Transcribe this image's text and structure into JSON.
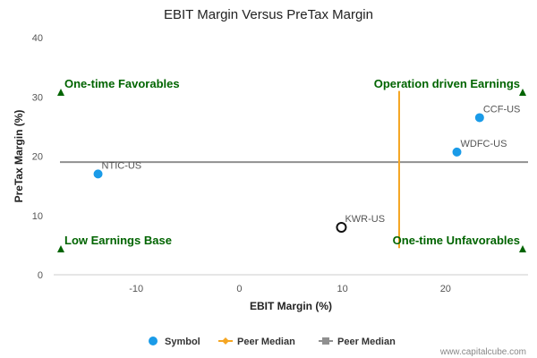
{
  "chart_data": {
    "type": "scatter",
    "title": "EBIT Margin Versus PreTax Margin",
    "xlabel": "EBIT Margin (%)",
    "ylabel": "PreTax Margin (%)",
    "xlim": [
      -18,
      28
    ],
    "ylim": [
      0,
      40
    ],
    "xticks": [
      -10,
      0,
      10,
      20
    ],
    "yticks": [
      0,
      10,
      20,
      30,
      40
    ],
    "grid": false,
    "legend_position": "bottom",
    "points": [
      {
        "label": "NTIC-US",
        "x": -13.7,
        "y": 17,
        "style": "filled"
      },
      {
        "label": "CCF-US",
        "x": 23.3,
        "y": 26.5,
        "style": "filled"
      },
      {
        "label": "WDFC-US",
        "x": 21.1,
        "y": 20.7,
        "style": "filled"
      },
      {
        "label": "KWR-US",
        "x": 9.9,
        "y": 8,
        "style": "open"
      }
    ],
    "peer_median_x": 15.5,
    "peer_median_y": 19,
    "peer_median_x_range": [
      4.5,
      31
    ],
    "quadrants": {
      "top_left": "One-time Favorables",
      "top_right": "Operation driven Earnings",
      "bottom_left": "Low Earnings Base",
      "bottom_right": "One-time Unfavorables"
    },
    "legend": [
      {
        "label": "Symbol",
        "marker": "circle"
      },
      {
        "label": "Peer Median",
        "marker": "diamond-line"
      },
      {
        "label": "Peer Median",
        "marker": "square-line"
      }
    ],
    "colors": {
      "point": "#1a9be8",
      "kwr_point_stroke": "#111111",
      "peer_median_x": "#f5a623",
      "peer_median_y": "#909090",
      "quadrant_text": "#006400",
      "triangle": "#006400"
    }
  },
  "credit": "www.capitalcube.com"
}
